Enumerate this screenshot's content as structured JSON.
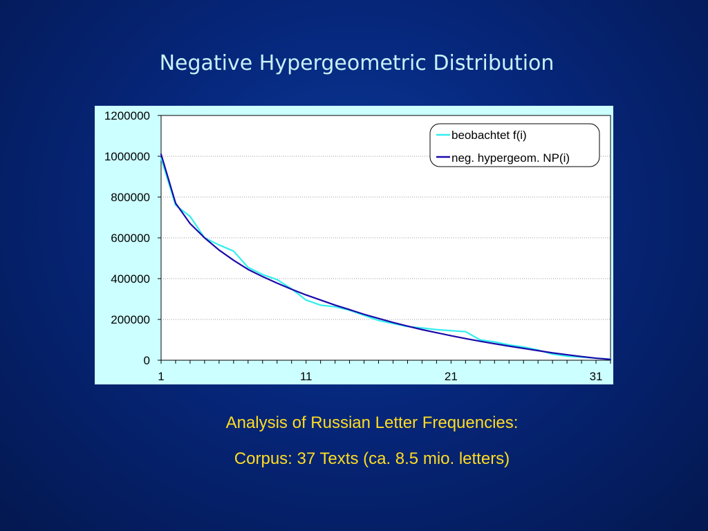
{
  "slide": {
    "title": "Negative Hypergeometric Distribution",
    "caption_line1": "Analysis of Russian Letter Frequencies:",
    "caption_line2": "Corpus: 37 Texts (ca. 8.5 mio. letters)"
  },
  "chart_data": {
    "type": "line",
    "title": "",
    "xlabel": "",
    "ylabel": "",
    "xlim": [
      1,
      32
    ],
    "ylim": [
      0,
      1200000
    ],
    "x_ticks": [
      "1",
      "11",
      "21",
      "31"
    ],
    "y_ticks": [
      "0",
      "200000",
      "400000",
      "600000",
      "800000",
      "1000000",
      "1200000"
    ],
    "grid": "horizontal",
    "legend_position": "top-right",
    "x": [
      1,
      2,
      3,
      4,
      5,
      6,
      7,
      8,
      9,
      10,
      11,
      12,
      13,
      14,
      15,
      16,
      17,
      18,
      19,
      20,
      21,
      22,
      23,
      24,
      25,
      26,
      27,
      28,
      29,
      30,
      31,
      32
    ],
    "series": [
      {
        "name": "beobachtet f(i)",
        "color": "#33eeee",
        "values": [
          990000,
          760000,
          705000,
          600000,
          565000,
          535000,
          455000,
          420000,
          395000,
          350000,
          295000,
          270000,
          262000,
          245000,
          220000,
          195000,
          180000,
          165000,
          158000,
          150000,
          145000,
          140000,
          100000,
          90000,
          75000,
          65000,
          50000,
          30000,
          20000,
          15000,
          10000,
          5000
        ]
      },
      {
        "name": "neg. hypergeom. NP(i)",
        "color": "#1a0aa8",
        "values": [
          1010000,
          770000,
          670000,
          600000,
          540000,
          490000,
          445000,
          410000,
          378000,
          348000,
          320000,
          295000,
          270000,
          248000,
          225000,
          205000,
          185000,
          167000,
          150000,
          135000,
          120000,
          106000,
          93000,
          81000,
          69000,
          58000,
          47000,
          36000,
          27000,
          18000,
          10000,
          4000
        ]
      }
    ]
  }
}
